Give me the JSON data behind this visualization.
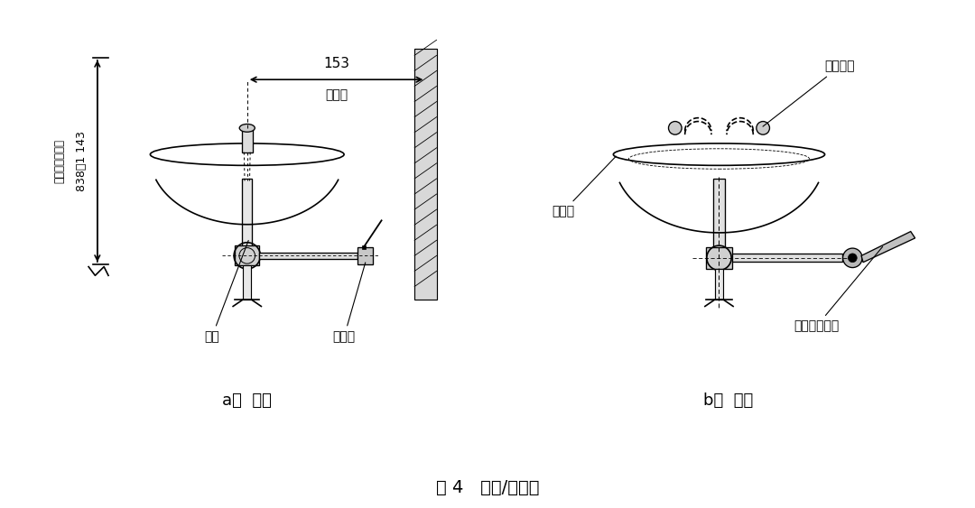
{
  "title": "图 4   洗眼/洗脸器",
  "label_a": "a）  正面",
  "label_b": "b）  侧面",
  "dim_153": "153",
  "dim_min": "最小值",
  "dim_height": "838～1 143",
  "dim_height_label": "至使用者站立面",
  "label_pipe": "管道",
  "label_valve": "控制阀",
  "label_basin": "洗眼盆",
  "label_nozzle": "洗眼喷头",
  "label_valve_drive": "阀门驱动装置",
  "bg_color": "#ffffff",
  "line_color": "#000000",
  "line_width": 1.2,
  "dash_color": "#555555"
}
